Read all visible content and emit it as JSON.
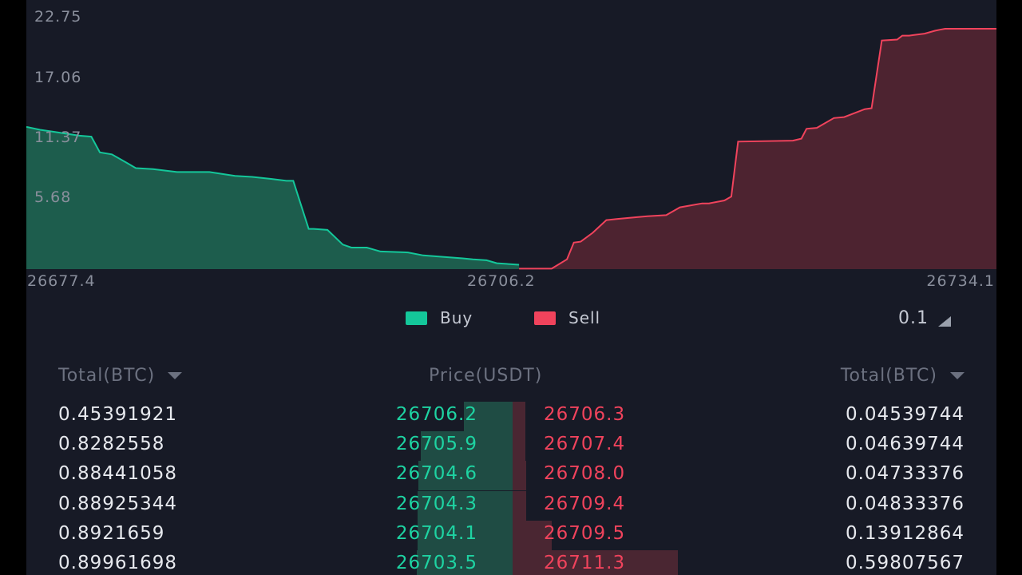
{
  "chart_data": {
    "type": "area",
    "title": "",
    "y_ticks": [
      "22.75",
      "17.06",
      "11.37",
      "5.68"
    ],
    "x_ticks": [
      "26677.4",
      "26706.2",
      "26734.1"
    ],
    "ylim": [
      0,
      24.5
    ],
    "xlim": [
      26677.4,
      26734.1
    ],
    "series": [
      {
        "name": "Buy",
        "color": "#14c79a",
        "x": [
          26677.4,
          26678.2,
          26679.0,
          26680.5,
          26681.2,
          26681.7,
          26682.4,
          26683.3,
          26683.8,
          26684.8,
          26686.2,
          26688.1,
          26689.6,
          26690.6,
          26691.7,
          26692.6,
          26693.0,
          26693.9,
          26694.2,
          26695.0,
          26695.9,
          26696.4,
          26697.3,
          26698.1,
          26699.7,
          26700.6,
          26702.9,
          26703.5,
          26704.3,
          26704.9,
          26706.2
        ],
        "y": [
          14.5,
          14.2,
          14.0,
          13.6,
          13.5,
          11.9,
          11.7,
          10.8,
          10.3,
          10.2,
          9.9,
          9.9,
          9.5,
          9.4,
          9.2,
          9.0,
          9.0,
          4.1,
          4.1,
          4.0,
          2.5,
          2.2,
          2.2,
          1.8,
          1.7,
          1.4,
          1.1,
          1.0,
          0.9,
          0.6,
          0.45
        ]
      },
      {
        "name": "Sell",
        "color": "#f0435c",
        "x": [
          26706.2,
          26706.3,
          26708.1,
          26709.0,
          26709.4,
          26709.8,
          26710.5,
          26711.3,
          26711.9,
          26713.1,
          26713.7,
          26714.8,
          26715.6,
          26716.9,
          26717.3,
          26718.2,
          26718.6,
          26719.0,
          26722.2,
          26722.7,
          26723.0,
          26723.6,
          26724.6,
          26725.2,
          26726.4,
          26726.8,
          26727.4,
          26728.3,
          26728.6,
          26729.0,
          26729.9,
          26730.5,
          26730.8,
          26731.1,
          26732.6,
          26734.1
        ],
        "y": [
          0.05,
          0.05,
          0.05,
          1.0,
          2.7,
          2.8,
          3.7,
          5.0,
          5.1,
          5.3,
          5.4,
          5.5,
          6.3,
          6.7,
          6.7,
          7.0,
          7.4,
          13.0,
          13.1,
          13.3,
          14.3,
          14.4,
          15.4,
          15.5,
          16.3,
          16.4,
          23.3,
          23.4,
          23.8,
          23.8,
          24.0,
          24.3,
          24.4,
          24.5,
          24.5,
          24.5
        ]
      }
    ]
  },
  "legend": {
    "buy_label": "Buy",
    "sell_label": "Sell",
    "buy_color": "#14c79a",
    "sell_color": "#f0435c"
  },
  "precision": {
    "value": "0.1"
  },
  "book": {
    "headers": {
      "buy_total": "Total(BTC)",
      "price": "Price(USDT)",
      "sell_total": "Total(BTC)"
    },
    "rows": [
      {
        "buy_total": "0.45391921",
        "buy_price": "26706.2",
        "sell_price": "26706.3",
        "sell_total": "0.04539744",
        "buy_depth": 0.1,
        "sell_depth": 0.027
      },
      {
        "buy_total": "0.8282558",
        "buy_price": "26705.9",
        "sell_price": "26707.4",
        "sell_total": "0.04639744",
        "buy_depth": 0.19,
        "sell_depth": 0.027
      },
      {
        "buy_total": "0.88441058",
        "buy_price": "26704.6",
        "sell_price": "26708.0",
        "sell_total": "0.04733376",
        "buy_depth": 0.195,
        "sell_depth": 0.028
      },
      {
        "buy_total": "0.88925344",
        "buy_price": "26704.3",
        "sell_price": "26709.4",
        "sell_total": "0.04833376",
        "buy_depth": 0.196,
        "sell_depth": 0.028
      },
      {
        "buy_total": "0.8921659",
        "buy_price": "26704.1",
        "sell_price": "26709.5",
        "sell_total": "0.13912864",
        "buy_depth": 0.196,
        "sell_depth": 0.08
      },
      {
        "buy_total": "0.89961698",
        "buy_price": "26703.5",
        "sell_price": "26711.3",
        "sell_total": "0.59807567",
        "buy_depth": 0.198,
        "sell_depth": 0.34
      }
    ]
  }
}
